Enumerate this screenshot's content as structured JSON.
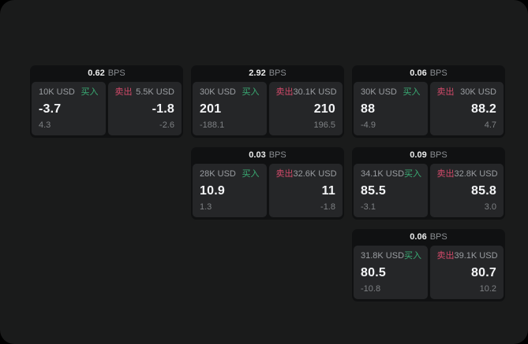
{
  "labels": {
    "buy": "买入",
    "sell": "卖出",
    "bps_unit": "BPS"
  },
  "colors": {
    "buy": "#3aac74",
    "sell": "#d34a6a",
    "surface": "#1a1b1b",
    "card": "#101112",
    "panel": "#252628"
  },
  "cards": [
    {
      "bps": "0.62",
      "buy": {
        "amount": "10K USD",
        "value": "-3.7",
        "sub": "4.3"
      },
      "sell": {
        "amount": "5.5K USD",
        "value": "-1.8",
        "sub": "-2.6"
      }
    },
    {
      "bps": "2.92",
      "buy": {
        "amount": "30K USD",
        "value": "201",
        "sub": "-188.1"
      },
      "sell": {
        "amount": "30.1K USD",
        "value": "210",
        "sub": "196.5"
      }
    },
    {
      "bps": "0.06",
      "buy": {
        "amount": "30K USD",
        "value": "88",
        "sub": "-4.9"
      },
      "sell": {
        "amount": "30K USD",
        "value": "88.2",
        "sub": "4.7"
      }
    },
    {
      "bps": "0.03",
      "buy": {
        "amount": "28K USD",
        "value": "10.9",
        "sub": "1.3"
      },
      "sell": {
        "amount": "32.6K USD",
        "value": "11",
        "sub": "-1.8"
      }
    },
    {
      "bps": "0.09",
      "buy": {
        "amount": "34.1K USD",
        "value": "85.5",
        "sub": "-3.1"
      },
      "sell": {
        "amount": "32.8K USD",
        "value": "85.8",
        "sub": "3.0"
      }
    },
    {
      "bps": "0.06",
      "buy": {
        "amount": "31.8K USD",
        "value": "80.5",
        "sub": "-10.8"
      },
      "sell": {
        "amount": "39.1K USD",
        "value": "80.7",
        "sub": "10.2"
      }
    }
  ]
}
